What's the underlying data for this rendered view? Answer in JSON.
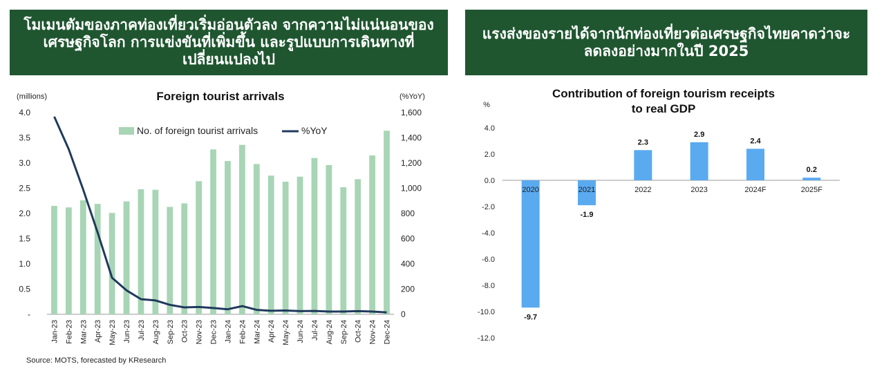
{
  "banner_left": {
    "lines": [
      "โมเมนตัมของภาคท่องเที่ยวเริ่มอ่อนตัวลง จากความไม่แน่นอนของ",
      "เศรษฐกิจโลก การแข่งขันที่เพิ่มขึ้น และรูปแบบการเดินทางที่",
      "เปลี่ยนแปลงไป"
    ]
  },
  "banner_right": {
    "lines": [
      "แรงส่งของรายได้จากนักท่องเที่ยวต่อเศรษฐกิจไทยคาดว่าจะ",
      "ลดลงอย่างมากในปี 2025"
    ]
  },
  "source": "Source: MOTS, forecasted by KResearch",
  "chart_data": [
    {
      "type": "bar+line",
      "title": "Foreign tourist arrivals",
      "left_unit": "(millions)",
      "right_unit": "(%YoY)",
      "categories": [
        "Jan-23",
        "Feb-23",
        "Mar-23",
        "Apr-23",
        "May-23",
        "Jun-23",
        "Jul-23",
        "Aug-23",
        "Sep-23",
        "Oct-23",
        "Nov-23",
        "Dec-23",
        "Jan-24",
        "Feb-24",
        "Mar-24",
        "Apr-24",
        "May-24",
        "Jun-24",
        "Jul-24",
        "Aug-24",
        "Sep-24",
        "Oct-24",
        "Nov-24",
        "Dec-24"
      ],
      "series": [
        {
          "name": "No. of foreign tourist arrivals",
          "axis": "left",
          "color": "#a8d5b5",
          "values": [
            2.15,
            2.12,
            2.26,
            2.19,
            2.01,
            2.24,
            2.48,
            2.47,
            2.13,
            2.2,
            2.64,
            3.27,
            3.04,
            3.36,
            2.98,
            2.75,
            2.63,
            2.73,
            3.1,
            2.96,
            2.52,
            2.68,
            3.15,
            3.64
          ]
        },
        {
          "name": "%YoY",
          "axis": "right",
          "color": "#1f3a5c",
          "values": [
            1568,
            1310,
            990,
            650,
            290,
            190,
            120,
            110,
            75,
            55,
            58,
            50,
            40,
            65,
            35,
            28,
            30,
            25,
            27,
            22,
            22,
            25,
            22,
            15
          ]
        }
      ],
      "left_ticks": [
        "-",
        "0.5",
        "1.0",
        "1.5",
        "2.0",
        "2.5",
        "3.0",
        "3.5",
        "4.0"
      ],
      "right_ticks": [
        "0",
        "200",
        "400",
        "600",
        "800",
        "1,000",
        "1,200",
        "1,400",
        "1,600"
      ],
      "ylim_left": [
        0,
        4
      ],
      "ylim_right": [
        0,
        1600
      ],
      "legend": "top"
    },
    {
      "type": "bar",
      "title_lines": [
        "Contribution of foreign tourism receipts",
        "to real GDP"
      ],
      "ylabel": "%",
      "categories": [
        "2020",
        "2021",
        "2022",
        "2023",
        "2024F",
        "2025F"
      ],
      "values": [
        -9.7,
        -1.9,
        2.3,
        2.9,
        2.4,
        0.2
      ],
      "value_labels": [
        "-9.7",
        "-1.9",
        "2.3",
        "2.9",
        "2.4",
        "0.2"
      ],
      "y_ticks": [
        "4.0",
        "2.0",
        "0.0",
        "-2.0",
        "-4.0",
        "-6.0",
        "-8.0",
        "-10.0",
        "-12.0"
      ],
      "ylim": [
        -12,
        4
      ],
      "color": "#5aaaf0"
    }
  ]
}
